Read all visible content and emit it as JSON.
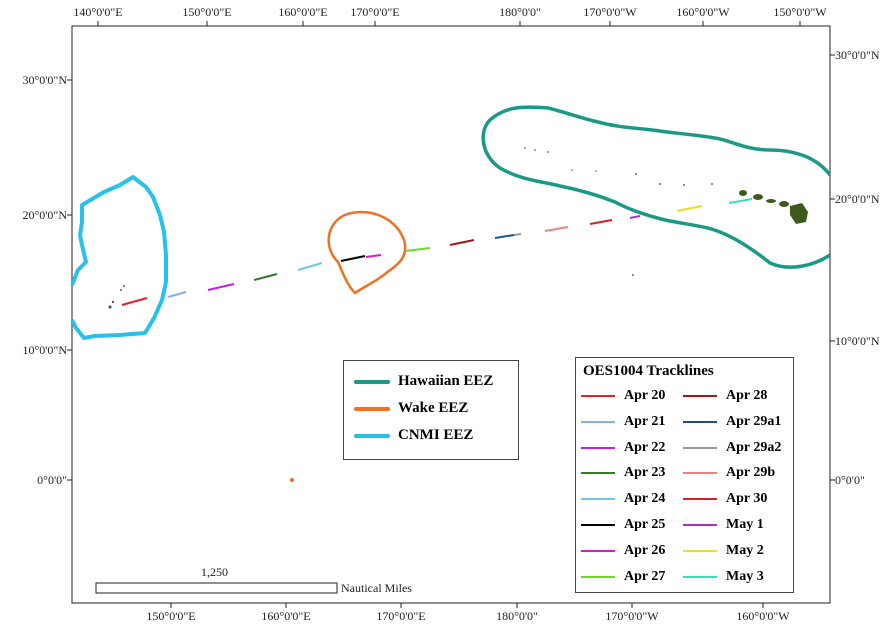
{
  "map": {
    "top_longitudes": [
      "140°0'0\"E",
      "150°0'0\"E",
      "160°0'0\"E",
      "170°0'0\"E",
      "180°0'0\"",
      "170°0'0\"W",
      "160°0'0\"W",
      "150°0'0\"W"
    ],
    "bottom_longitudes": [
      "150°0'0\"E",
      "160°0'0\"E",
      "170°0'0\"E",
      "180°0'0\"",
      "170°0'0\"W",
      "160°0'0\"W"
    ],
    "left_latitudes": [
      "30°0'0\"N",
      "20°0'0\"N",
      "10°0'0\"N",
      "0°0'0\""
    ],
    "right_latitudes": [
      "30°0'0\"N",
      "20°0'0\"N",
      "10°0'0\"N",
      "0°0'0\""
    ]
  },
  "eez_legend": {
    "items": [
      {
        "label": "Hawaiian EEZ",
        "color": "#1a9a86"
      },
      {
        "label": "Wake EEZ",
        "color": "#ee7022"
      },
      {
        "label": "CNMI EEZ",
        "color": "#29c0ea"
      }
    ]
  },
  "track_legend": {
    "title": "OES1004 Tracklines",
    "items": [
      {
        "label": "Apr 20",
        "color": "#e02020"
      },
      {
        "label": "Apr 21",
        "color": "#7fb2ea"
      },
      {
        "label": "Apr 22",
        "color": "#c020e0"
      },
      {
        "label": "Apr 23",
        "color": "#2e7d1e"
      },
      {
        "label": "Apr 24",
        "color": "#6fc8e0"
      },
      {
        "label": "Apr 25",
        "color": "#000000"
      },
      {
        "label": "Apr 26",
        "color": "#d020c0"
      },
      {
        "label": "Apr 27",
        "color": "#66dd22"
      },
      {
        "label": "Apr 28",
        "color": "#a01818"
      },
      {
        "label": "Apr 29a1",
        "color": "#1a4fa0"
      },
      {
        "label": "Apr 29a2",
        "color": "#999999"
      },
      {
        "label": "Apr 29b",
        "color": "#f08080"
      },
      {
        "label": "Apr 30",
        "color": "#d42020"
      },
      {
        "label": "May 1",
        "color": "#b030c0"
      },
      {
        "label": "May 2",
        "color": "#e8e020"
      },
      {
        "label": "May 3",
        "color": "#30e0c0"
      }
    ]
  },
  "scale": {
    "value": "1,250",
    "unit": "Nautical Miles"
  }
}
